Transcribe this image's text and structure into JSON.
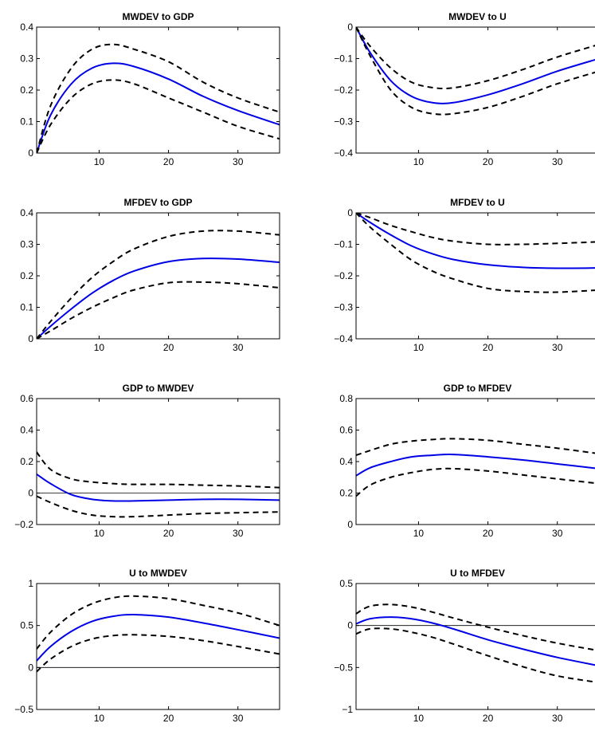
{
  "colors": {
    "median": "#0000e6",
    "bands": "#000000",
    "zero_line": "#000000"
  },
  "chart_data": [
    {
      "type": "line",
      "title": "MWDEV to GDP",
      "xlim": [
        1,
        36
      ],
      "ylim": [
        0,
        0.4
      ],
      "xticks": [
        10,
        20,
        30
      ],
      "xtick_labels": [
        "10",
        "20",
        "30"
      ],
      "yticks": [
        0,
        0.1,
        0.2,
        0.3,
        0.4
      ],
      "ytick_labels": [
        "0",
        "0.1",
        "0.2",
        "0.3",
        "0.4"
      ],
      "zero_line": false,
      "x": [
        1,
        3,
        6,
        9,
        12,
        15,
        20,
        25,
        30,
        36
      ],
      "series": [
        {
          "style": "median",
          "values": [
            0.0,
            0.12,
            0.22,
            0.27,
            0.285,
            0.275,
            0.235,
            0.18,
            0.135,
            0.09
          ]
        },
        {
          "style": "band",
          "values": [
            0.0,
            0.15,
            0.27,
            0.33,
            0.345,
            0.33,
            0.29,
            0.225,
            0.175,
            0.13
          ]
        },
        {
          "style": "band",
          "values": [
            0.0,
            0.09,
            0.175,
            0.22,
            0.232,
            0.22,
            0.175,
            0.13,
            0.085,
            0.045
          ]
        }
      ]
    },
    {
      "type": "line",
      "title": "MWDEV to U",
      "xlim": [
        1,
        36
      ],
      "ylim": [
        -0.4,
        0
      ],
      "xticks": [
        10,
        20,
        30
      ],
      "xtick_labels": [
        "10",
        "20",
        "30"
      ],
      "yticks": [
        -0.4,
        -0.3,
        -0.2,
        -0.1,
        0
      ],
      "ytick_labels": [
        "−0.4",
        "−0.3",
        "−0.2",
        "−0.1",
        "0"
      ],
      "zero_line": false,
      "x": [
        1,
        3,
        6,
        9,
        12,
        15,
        20,
        25,
        30,
        36
      ],
      "series": [
        {
          "style": "median",
          "values": [
            0.0,
            -0.08,
            -0.17,
            -0.22,
            -0.24,
            -0.24,
            -0.215,
            -0.18,
            -0.14,
            -0.1
          ]
        },
        {
          "style": "band",
          "values": [
            0.0,
            -0.06,
            -0.13,
            -0.175,
            -0.192,
            -0.193,
            -0.17,
            -0.135,
            -0.095,
            -0.055
          ]
        },
        {
          "style": "band",
          "values": [
            0.0,
            -0.09,
            -0.2,
            -0.255,
            -0.275,
            -0.275,
            -0.255,
            -0.22,
            -0.18,
            -0.14
          ]
        }
      ]
    },
    {
      "type": "line",
      "title": "MFDEV to GDP",
      "xlim": [
        1,
        36
      ],
      "ylim": [
        0,
        0.4
      ],
      "xticks": [
        10,
        20,
        30
      ],
      "xtick_labels": [
        "10",
        "20",
        "30"
      ],
      "yticks": [
        0,
        0.1,
        0.2,
        0.3,
        0.4
      ],
      "ytick_labels": [
        "0",
        "0.1",
        "0.2",
        "0.3",
        "0.4"
      ],
      "zero_line": false,
      "x": [
        1,
        3,
        6,
        9,
        12,
        15,
        20,
        25,
        30,
        36
      ],
      "series": [
        {
          "style": "median",
          "values": [
            0.0,
            0.04,
            0.095,
            0.145,
            0.185,
            0.215,
            0.245,
            0.255,
            0.253,
            0.243
          ]
        },
        {
          "style": "band",
          "values": [
            0.0,
            0.055,
            0.13,
            0.195,
            0.245,
            0.285,
            0.325,
            0.342,
            0.342,
            0.33
          ]
        },
        {
          "style": "band",
          "values": [
            0.0,
            0.025,
            0.065,
            0.1,
            0.13,
            0.155,
            0.178,
            0.18,
            0.175,
            0.162
          ]
        }
      ]
    },
    {
      "type": "line",
      "title": "MFDEV to U",
      "xlim": [
        1,
        36
      ],
      "ylim": [
        -0.4,
        0
      ],
      "xticks": [
        10,
        20,
        30
      ],
      "xtick_labels": [
        "10",
        "20",
        "30"
      ],
      "yticks": [
        -0.4,
        -0.3,
        -0.2,
        -0.1,
        0
      ],
      "ytick_labels": [
        "−0.4",
        "−0.3",
        "−0.2",
        "−0.1",
        "0"
      ],
      "zero_line": false,
      "x": [
        1,
        3,
        6,
        9,
        12,
        15,
        20,
        25,
        30,
        36
      ],
      "series": [
        {
          "style": "median",
          "values": [
            0.0,
            -0.03,
            -0.07,
            -0.105,
            -0.13,
            -0.148,
            -0.165,
            -0.173,
            -0.176,
            -0.175
          ]
        },
        {
          "style": "band",
          "values": [
            0.0,
            -0.015,
            -0.04,
            -0.06,
            -0.078,
            -0.09,
            -0.1,
            -0.1,
            -0.097,
            -0.092
          ]
        },
        {
          "style": "band",
          "values": [
            0.0,
            -0.045,
            -0.1,
            -0.15,
            -0.185,
            -0.21,
            -0.24,
            -0.25,
            -0.252,
            -0.245
          ]
        }
      ]
    },
    {
      "type": "line",
      "title": "GDP to MWDEV",
      "xlim": [
        1,
        36
      ],
      "ylim": [
        -0.2,
        0.6
      ],
      "xticks": [
        10,
        20,
        30
      ],
      "xtick_labels": [
        "10",
        "20",
        "30"
      ],
      "yticks": [
        -0.2,
        0,
        0.2,
        0.4,
        0.6
      ],
      "ytick_labels": [
        "−0.2",
        "0",
        "0.2",
        "0.4",
        "0.6"
      ],
      "zero_line": true,
      "x": [
        1,
        3,
        6,
        9,
        12,
        15,
        20,
        25,
        30,
        36
      ],
      "series": [
        {
          "style": "median",
          "values": [
            0.12,
            0.06,
            -0.01,
            -0.04,
            -0.05,
            -0.05,
            -0.045,
            -0.04,
            -0.04,
            -0.045
          ]
        },
        {
          "style": "band",
          "values": [
            0.26,
            0.15,
            0.09,
            0.07,
            0.06,
            0.055,
            0.055,
            0.05,
            0.045,
            0.035
          ]
        },
        {
          "style": "band",
          "values": [
            -0.02,
            -0.06,
            -0.11,
            -0.14,
            -0.15,
            -0.15,
            -0.14,
            -0.13,
            -0.125,
            -0.12
          ]
        }
      ]
    },
    {
      "type": "line",
      "title": "GDP to MFDEV",
      "xlim": [
        1,
        36
      ],
      "ylim": [
        0,
        0.8
      ],
      "xticks": [
        10,
        20,
        30
      ],
      "xtick_labels": [
        "10",
        "20",
        "30"
      ],
      "yticks": [
        0,
        0.2,
        0.4,
        0.6,
        0.8
      ],
      "ytick_labels": [
        "0",
        "0.2",
        "0.4",
        "0.6",
        "0.8"
      ],
      "zero_line": false,
      "x": [
        1,
        3,
        6,
        9,
        12,
        15,
        20,
        25,
        30,
        36
      ],
      "series": [
        {
          "style": "median",
          "values": [
            0.31,
            0.36,
            0.4,
            0.43,
            0.44,
            0.445,
            0.43,
            0.41,
            0.385,
            0.355
          ]
        },
        {
          "style": "band",
          "values": [
            0.44,
            0.47,
            0.51,
            0.53,
            0.54,
            0.545,
            0.535,
            0.51,
            0.485,
            0.45
          ]
        },
        {
          "style": "band",
          "values": [
            0.18,
            0.25,
            0.3,
            0.33,
            0.35,
            0.355,
            0.34,
            0.315,
            0.29,
            0.26
          ]
        }
      ]
    },
    {
      "type": "line",
      "title": "U to MWDEV",
      "xlim": [
        1,
        36
      ],
      "ylim": [
        -0.5,
        1
      ],
      "xticks": [
        10,
        20,
        30
      ],
      "xtick_labels": [
        "10",
        "20",
        "30"
      ],
      "yticks": [
        -0.5,
        0,
        0.5,
        1
      ],
      "ytick_labels": [
        "−0.5",
        "0",
        "0.5",
        "1"
      ],
      "zero_line": true,
      "x": [
        1,
        3,
        6,
        9,
        12,
        15,
        20,
        25,
        30,
        36
      ],
      "series": [
        {
          "style": "median",
          "values": [
            0.08,
            0.25,
            0.43,
            0.55,
            0.61,
            0.63,
            0.6,
            0.53,
            0.45,
            0.35
          ]
        },
        {
          "style": "band",
          "values": [
            0.22,
            0.42,
            0.63,
            0.76,
            0.83,
            0.85,
            0.82,
            0.74,
            0.65,
            0.5
          ]
        },
        {
          "style": "band",
          "values": [
            -0.05,
            0.1,
            0.25,
            0.34,
            0.38,
            0.39,
            0.37,
            0.32,
            0.25,
            0.16
          ]
        }
      ]
    },
    {
      "type": "line",
      "title": "U to MFDEV",
      "xlim": [
        1,
        36
      ],
      "ylim": [
        -1,
        0.5
      ],
      "xticks": [
        10,
        20,
        30
      ],
      "xtick_labels": [
        "10",
        "20",
        "30"
      ],
      "yticks": [
        -1,
        -0.5,
        0,
        0.5
      ],
      "ytick_labels": [
        "−1",
        "−0.5",
        "0",
        "0.5"
      ],
      "zero_line": true,
      "x": [
        1,
        3,
        6,
        9,
        12,
        15,
        20,
        25,
        30,
        36
      ],
      "series": [
        {
          "style": "median",
          "values": [
            0.02,
            0.08,
            0.1,
            0.08,
            0.03,
            -0.04,
            -0.17,
            -0.28,
            -0.38,
            -0.48
          ]
        },
        {
          "style": "band",
          "values": [
            0.14,
            0.23,
            0.25,
            0.22,
            0.16,
            0.09,
            -0.02,
            -0.12,
            -0.21,
            -0.3
          ]
        },
        {
          "style": "band",
          "values": [
            -0.1,
            -0.04,
            -0.04,
            -0.08,
            -0.14,
            -0.22,
            -0.36,
            -0.49,
            -0.6,
            -0.68
          ]
        }
      ]
    }
  ]
}
